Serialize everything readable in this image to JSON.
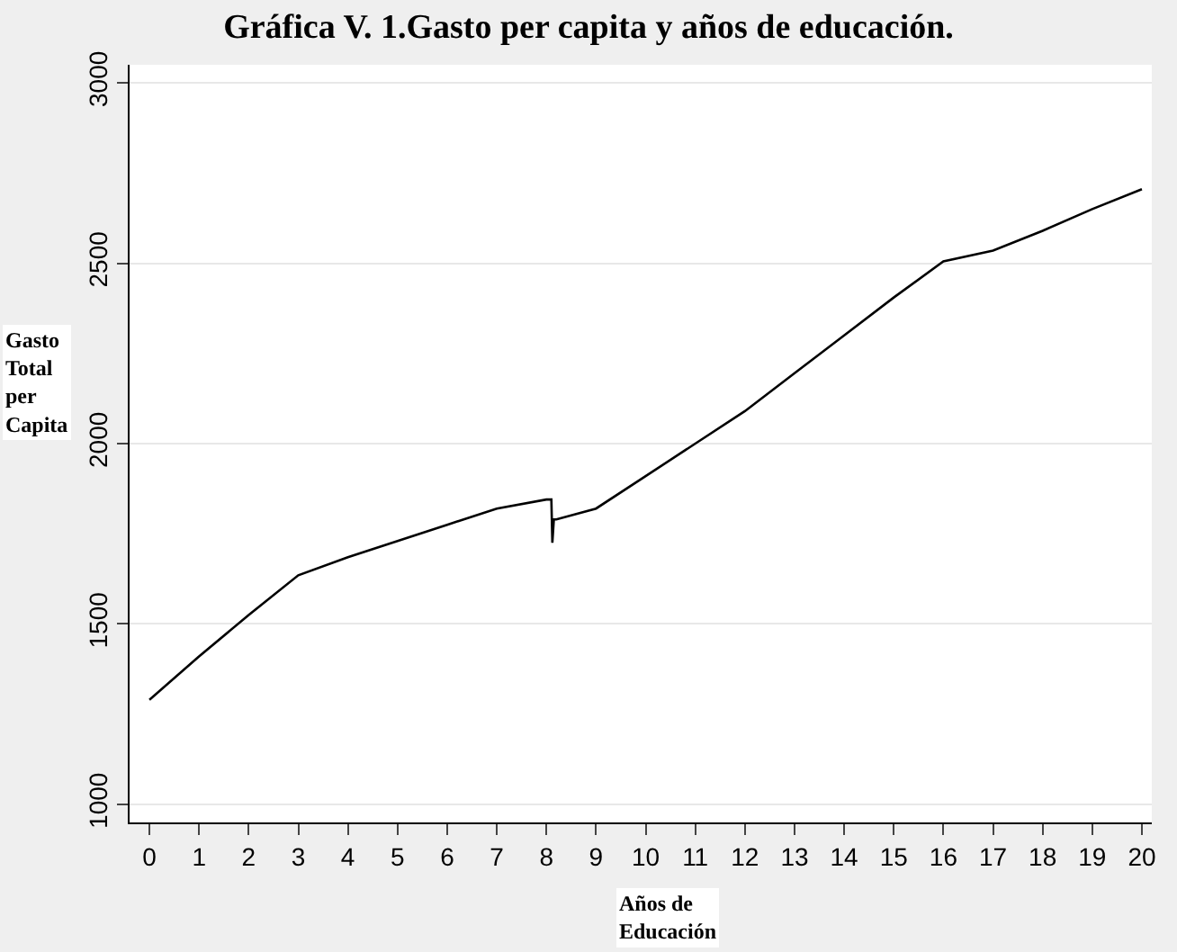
{
  "chart_data": {
    "type": "line",
    "title": "Gráfica V. 1.Gasto per capita y años de educación.",
    "xlabel": "Años de Educación",
    "ylabel": "Gasto Total per Capita",
    "series": [
      {
        "color": "#000000",
        "x": [
          0,
          1,
          2,
          3,
          4,
          5,
          6,
          7,
          8,
          8.1,
          8.12,
          8.15,
          8.2,
          9,
          10,
          11,
          12,
          13,
          14,
          15,
          16,
          17,
          18,
          19,
          20
        ],
        "values": [
          1290,
          1410,
          1525,
          1635,
          1685,
          1730,
          1775,
          1820,
          1845,
          1845,
          1725,
          1790,
          1790,
          1820,
          1910,
          2000,
          2090,
          2195,
          2300,
          2405,
          2505,
          2535,
          2590,
          2650,
          2705
        ]
      }
    ],
    "xlim": [
      -0.4,
      20.2
    ],
    "xticks": [
      0,
      1,
      2,
      3,
      4,
      5,
      6,
      7,
      8,
      9,
      10,
      11,
      12,
      13,
      14,
      15,
      16,
      17,
      18,
      19,
      20
    ],
    "ylim": [
      950,
      3050
    ],
    "yticks": [
      1000,
      1500,
      2000,
      2500,
      3000
    ],
    "grid": "y",
    "marker": "none",
    "line_style": "solid"
  }
}
